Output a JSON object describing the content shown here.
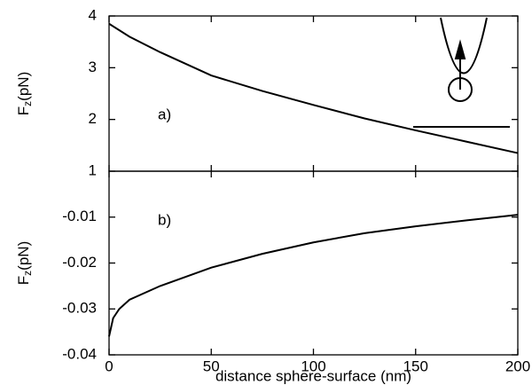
{
  "chart_data": [
    {
      "type": "line",
      "annotation": "a)",
      "ylabel": {
        "main": "F",
        "sub": "z",
        "unit": "(pN)"
      },
      "x": [
        0,
        10,
        25,
        50,
        75,
        100,
        125,
        150,
        175,
        200
      ],
      "values": [
        3.85,
        3.6,
        3.3,
        2.85,
        2.55,
        2.28,
        2.02,
        1.79,
        1.57,
        1.35
      ],
      "color": "#000000",
      "ylim": [
        1,
        4
      ],
      "yticks": [
        1,
        2,
        3,
        4
      ]
    },
    {
      "type": "line",
      "annotation": "b)",
      "ylabel": {
        "main": "F",
        "sub": "z",
        "unit": "(pN)"
      },
      "xlabel": "distance sphere-surface (nm)",
      "x": [
        0,
        2,
        5,
        10,
        25,
        50,
        75,
        100,
        125,
        150,
        175,
        200
      ],
      "values": [
        -0.036,
        -0.032,
        -0.03,
        -0.028,
        -0.025,
        -0.021,
        -0.018,
        -0.0155,
        -0.0135,
        -0.012,
        -0.0107,
        -0.0095
      ],
      "color": "#000000",
      "xlim": [
        0,
        200
      ],
      "xticks": [
        0,
        50,
        100,
        150,
        200
      ],
      "ylim": [
        -0.04,
        0
      ],
      "yticks": [
        -0.04,
        -0.03,
        -0.02,
        -0.01
      ]
    }
  ]
}
